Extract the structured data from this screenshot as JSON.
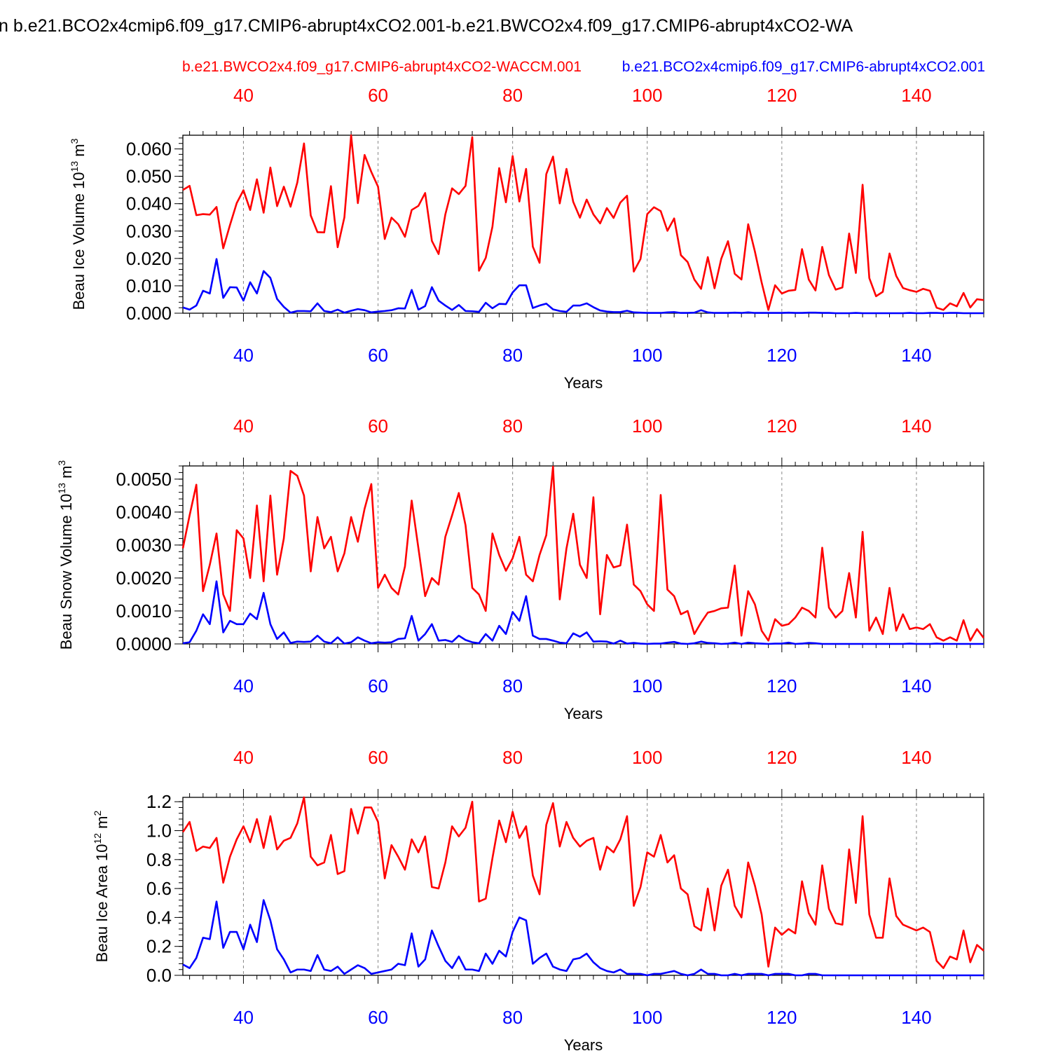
{
  "title": "n b.e21.BCO2x4cmip6.f09_g17.CMIP6-abrupt4xCO2.001-b.e21.BWCO2x4.f09_g17.CMIP6-abrupt4xCO2-WA",
  "legend": {
    "red_label": "b.e21.BWCO2x4.f09_g17.CMIP6-abrupt4xCO2-WACCM.001",
    "blue_label": "b.e21.BCO2x4cmip6.f09_g17.CMIP6-abrupt4xCO2.001"
  },
  "colors": {
    "red": "#ff0000",
    "blue": "#0000ff",
    "axis": "#000000",
    "grid": "#888888"
  },
  "chart_data": [
    {
      "type": "line",
      "xlabel": "Years",
      "ylabel": "Beau Ice Volume 10",
      "ylabel_sup": "13",
      "ylabel_unit": " m",
      "ylabel_unit_sup": "3",
      "xlim": [
        31,
        150
      ],
      "ylim": [
        0,
        0.065
      ],
      "yticks": [
        0,
        0.01,
        0.02,
        0.03,
        0.04,
        0.05,
        0.06
      ],
      "ytick_labels": [
        "0.000",
        "0.010",
        "0.020",
        "0.030",
        "0.040",
        "0.050",
        "0.060"
      ],
      "yminor": 0.002,
      "xticks": [
        40,
        60,
        80,
        100,
        120,
        140
      ],
      "xtick_labels": [
        "40",
        "60",
        "80",
        "100",
        "120",
        "140"
      ],
      "grid": "vertical dashed at major x ticks",
      "series": [
        {
          "color": "red",
          "x_start": 31,
          "values": [
            0.045,
            0.0465,
            0.0358,
            0.0362,
            0.036,
            0.0388,
            0.0237,
            0.0322,
            0.0402,
            0.0449,
            0.0377,
            0.0489,
            0.0367,
            0.0532,
            0.0391,
            0.0462,
            0.0389,
            0.0477,
            0.062,
            0.0357,
            0.0296,
            0.0295,
            0.0464,
            0.0241,
            0.035,
            0.065,
            0.0402,
            0.0578,
            0.0516,
            0.0462,
            0.0271,
            0.0349,
            0.0325,
            0.0279,
            0.0377,
            0.0392,
            0.0439,
            0.0264,
            0.0216,
            0.0361,
            0.0456,
            0.0435,
            0.0465,
            0.0643,
            0.0155,
            0.0202,
            0.0316,
            0.053,
            0.0405,
            0.0574,
            0.0408,
            0.0527,
            0.0243,
            0.0184,
            0.0508,
            0.0572,
            0.0401,
            0.0527,
            0.0407,
            0.0349,
            0.0415,
            0.0361,
            0.0328,
            0.0384,
            0.0348,
            0.0404,
            0.0429,
            0.0152,
            0.0198,
            0.0362,
            0.0387,
            0.0373,
            0.0301,
            0.0346,
            0.0212,
            0.0187,
            0.0123,
            0.0089,
            0.0205,
            0.0091,
            0.0199,
            0.0263,
            0.0144,
            0.0123,
            0.0325,
            0.0225,
            0.0112,
            0.0012,
            0.0102,
            0.0072,
            0.0082,
            0.0085,
            0.0234,
            0.0123,
            0.0083,
            0.0242,
            0.0139,
            0.0086,
            0.0094,
            0.0291,
            0.0147,
            0.0469,
            0.0128,
            0.0062,
            0.0078,
            0.0218,
            0.0136,
            0.0092,
            0.0084,
            0.0078,
            0.0089,
            0.0082,
            0.002,
            0.0012,
            0.0036,
            0.0025,
            0.0074,
            0.0021,
            0.0051,
            0.0048
          ]
        },
        {
          "color": "blue",
          "x_start": 31,
          "values": [
            0.0021,
            0.0013,
            0.0028,
            0.0082,
            0.0072,
            0.0198,
            0.0056,
            0.0095,
            0.0094,
            0.0046,
            0.0113,
            0.0072,
            0.0154,
            0.0129,
            0.0052,
            0.0023,
            0.0002,
            0.0008,
            0.0008,
            0.0007,
            0.0036,
            0.0008,
            0.0004,
            0.0013,
            0.0002,
            0.0009,
            0.0015,
            0.0011,
            0.0003,
            0.0006,
            0.0008,
            0.0011,
            0.0018,
            0.0017,
            0.0085,
            0.0013,
            0.0026,
            0.0095,
            0.0046,
            0.0028,
            0.0012,
            0.003,
            0.0008,
            0.0007,
            0.0005,
            0.0038,
            0.0018,
            0.0034,
            0.0033,
            0.0076,
            0.0102,
            0.0102,
            0.0019,
            0.0028,
            0.0035,
            0.0014,
            0.0008,
            0.0005,
            0.0028,
            0.0028,
            0.0036,
            0.0022,
            0.001,
            0.0006,
            0.0004,
            0.0004,
            0.0009,
            0.0003,
            0.0002,
            0.0001,
            0.0001,
            0.0001,
            0.0003,
            0.0004,
            0.0001,
            0.0001,
            0.0002,
            0.0011,
            0.0003,
            0.0001,
            0.0001,
            0.0001,
            0.0002,
            0.0001,
            0.0003,
            0.0001,
            0.0001,
            0.0001,
            0.0001,
            0.0001,
            0.0002,
            0.0001,
            0.0001,
            0.0002,
            0.0002,
            0.0001,
            0.0001,
            0.0,
            0.0,
            0.0,
            0.0001,
            0.0,
            0.0,
            0.0,
            0.0,
            0.0,
            0.0,
            0.0,
            0.0001,
            0.0,
            0.0,
            0.0001,
            0.0001,
            0.0,
            0.0001,
            0.0001,
            0.0,
            0.0,
            0.0,
            0.0
          ]
        }
      ]
    },
    {
      "type": "line",
      "xlabel": "Years",
      "ylabel": "Beau Snow Volume 10",
      "ylabel_sup": "13",
      "ylabel_unit": " m",
      "ylabel_unit_sup": "3",
      "xlim": [
        31,
        150
      ],
      "ylim": [
        0,
        0.0054
      ],
      "yticks": [
        0,
        0.001,
        0.002,
        0.003,
        0.004,
        0.005
      ],
      "ytick_labels": [
        "0.0000",
        "0.0010",
        "0.0020",
        "0.0030",
        "0.0040",
        "0.0050"
      ],
      "yminor": 0.0002,
      "xticks": [
        40,
        60,
        80,
        100,
        120,
        140
      ],
      "xtick_labels": [
        "40",
        "60",
        "80",
        "100",
        "120",
        "140"
      ],
      "grid": "vertical dashed at major x ticks",
      "series": [
        {
          "color": "red",
          "x_start": 31,
          "values": [
            0.0029,
            0.0039,
            0.00483,
            0.0016,
            0.0024,
            0.00335,
            0.0015,
            0.001,
            0.00345,
            0.0032,
            0.002,
            0.0042,
            0.0019,
            0.0045,
            0.0021,
            0.0032,
            0.00525,
            0.0051,
            0.0045,
            0.0022,
            0.00385,
            0.0029,
            0.00325,
            0.0022,
            0.00275,
            0.00385,
            0.0031,
            0.0041,
            0.00485,
            0.0017,
            0.0021,
            0.0017,
            0.0015,
            0.00235,
            0.00435,
            0.0029,
            0.00145,
            0.002,
            0.0018,
            0.00325,
            0.0039,
            0.00458,
            0.0036,
            0.0017,
            0.0015,
            0.001,
            0.00335,
            0.0027,
            0.00222,
            0.0026,
            0.00325,
            0.0021,
            0.0019,
            0.0027,
            0.0033,
            0.00538,
            0.00135,
            0.0029,
            0.00395,
            0.0024,
            0.002,
            0.00445,
            0.0009,
            0.0027,
            0.00232,
            0.00238,
            0.00362,
            0.0018,
            0.0016,
            0.0012,
            0.001,
            0.00452,
            0.00165,
            0.00145,
            0.0009,
            0.001,
            0.0003,
            0.00065,
            0.00095,
            0.001,
            0.00108,
            0.0011,
            0.00238,
            0.00025,
            0.0016,
            0.0012,
            0.0004,
            0.0001,
            0.00075,
            0.00055,
            0.0006,
            0.0008,
            0.0011,
            0.001,
            0.0008,
            0.00292,
            0.0011,
            0.0008,
            0.001,
            0.00215,
            0.0008,
            0.0034,
            0.0004,
            0.0008,
            0.0003,
            0.0017,
            0.0004,
            0.0009,
            0.00045,
            0.0005,
            0.00045,
            0.0006,
            0.0002,
            0.0001,
            0.0002,
            0.0001,
            0.00072,
            0.0001,
            0.00045,
            0.00018
          ]
        },
        {
          "color": "blue",
          "x_start": 31,
          "values": [
            2e-05,
            5e-05,
            0.0004,
            0.0009,
            0.0006,
            0.0019,
            0.00035,
            0.0007,
            0.0006,
            0.0006,
            0.00092,
            0.00075,
            0.00155,
            0.0006,
            0.00015,
            0.00035,
            3e-05,
            7e-05,
            6e-05,
            7e-05,
            0.00025,
            7e-05,
            2e-05,
            0.0002,
            1e-05,
            5e-05,
            0.0002,
            0.0001,
            2e-05,
            5e-05,
            4e-05,
            5e-05,
            0.00015,
            0.00017,
            0.00085,
            0.0001,
            0.0003,
            0.0006,
            0.0001,
            0.00012,
            6e-05,
            0.00025,
            0.00012,
            5e-05,
            2e-05,
            0.0003,
            0.0001,
            0.00055,
            0.0003,
            0.00097,
            0.0007,
            0.00145,
            0.00025,
            0.00015,
            0.00015,
            0.0001,
            4e-05,
            2e-05,
            0.00032,
            0.00022,
            0.00035,
            7e-05,
            8e-05,
            7e-05,
            1e-05,
            0.0001,
            1e-05,
            3e-05,
            1e-05,
            0.0,
            1e-05,
            1e-05,
            4e-05,
            6e-05,
            1e-05,
            0.0,
            2e-05,
            7e-05,
            3e-05,
            2e-05,
            0.0,
            1e-05,
            4e-05,
            0.0,
            4e-05,
            2e-05,
            1e-05,
            0.0,
            1e-05,
            1e-05,
            4e-05,
            0.0,
            1e-05,
            3e-05,
            2e-05,
            0.0,
            0.0,
            0.0,
            0.0,
            0.0,
            0.0,
            0.0,
            0.0,
            0.0,
            0.0,
            0.0,
            0.0,
            0.0,
            1e-05,
            0.0,
            0.0,
            0.0,
            1e-05,
            0.0,
            0.0,
            0.0,
            0.0,
            0.0,
            0.0,
            0.0
          ]
        }
      ]
    },
    {
      "type": "line",
      "xlabel": "Years",
      "ylabel": "Beau Ice Area 10",
      "ylabel_sup": "12",
      "ylabel_unit": " m",
      "ylabel_unit_sup": "2",
      "xlim": [
        31,
        150
      ],
      "ylim": [
        0,
        1.23
      ],
      "yticks": [
        0,
        0.2,
        0.4,
        0.6,
        0.8,
        1.0,
        1.2
      ],
      "ytick_labels": [
        "0.0",
        "0.2",
        "0.4",
        "0.6",
        "0.8",
        "1.0",
        "1.2"
      ],
      "yminor": 0.04,
      "xticks": [
        40,
        60,
        80,
        100,
        120,
        140
      ],
      "xtick_labels": [
        "40",
        "60",
        "80",
        "100",
        "120",
        "140"
      ],
      "grid": "vertical dashed at major x ticks",
      "series": [
        {
          "color": "red",
          "x_start": 31,
          "values": [
            0.99,
            1.06,
            0.86,
            0.89,
            0.88,
            0.95,
            0.64,
            0.82,
            0.94,
            1.03,
            0.92,
            1.08,
            0.88,
            1.1,
            0.87,
            0.93,
            0.95,
            1.05,
            1.23,
            0.82,
            0.76,
            0.78,
            0.97,
            0.7,
            0.72,
            1.15,
            0.98,
            1.16,
            1.16,
            1.06,
            0.67,
            0.9,
            0.82,
            0.73,
            0.94,
            0.85,
            0.96,
            0.61,
            0.6,
            0.78,
            1.03,
            0.96,
            1.02,
            1.2,
            0.51,
            0.53,
            0.81,
            1.07,
            0.92,
            1.13,
            0.95,
            1.03,
            0.69,
            0.56,
            1.04,
            1.19,
            0.89,
            1.06,
            0.95,
            0.89,
            0.93,
            0.95,
            0.73,
            0.89,
            0.85,
            0.94,
            1.1,
            0.48,
            0.61,
            0.85,
            0.82,
            0.97,
            0.78,
            0.83,
            0.6,
            0.56,
            0.34,
            0.31,
            0.6,
            0.31,
            0.62,
            0.73,
            0.48,
            0.4,
            0.78,
            0.62,
            0.42,
            0.06,
            0.33,
            0.28,
            0.32,
            0.29,
            0.65,
            0.43,
            0.35,
            0.76,
            0.46,
            0.36,
            0.35,
            0.87,
            0.5,
            1.1,
            0.42,
            0.26,
            0.26,
            0.67,
            0.41,
            0.35,
            0.33,
            0.31,
            0.33,
            0.3,
            0.1,
            0.05,
            0.13,
            0.11,
            0.31,
            0.09,
            0.21,
            0.17
          ]
        },
        {
          "color": "blue",
          "x_start": 31,
          "values": [
            0.075,
            0.05,
            0.12,
            0.26,
            0.25,
            0.51,
            0.19,
            0.3,
            0.3,
            0.18,
            0.35,
            0.23,
            0.52,
            0.38,
            0.18,
            0.11,
            0.02,
            0.04,
            0.04,
            0.03,
            0.14,
            0.04,
            0.03,
            0.06,
            0.01,
            0.04,
            0.07,
            0.05,
            0.01,
            0.02,
            0.03,
            0.04,
            0.08,
            0.07,
            0.29,
            0.06,
            0.11,
            0.31,
            0.2,
            0.1,
            0.05,
            0.13,
            0.04,
            0.04,
            0.03,
            0.15,
            0.08,
            0.17,
            0.13,
            0.3,
            0.4,
            0.38,
            0.08,
            0.12,
            0.15,
            0.06,
            0.04,
            0.03,
            0.11,
            0.12,
            0.15,
            0.09,
            0.05,
            0.03,
            0.02,
            0.04,
            0.01,
            0.01,
            0.01,
            0.0,
            0.01,
            0.01,
            0.02,
            0.03,
            0.01,
            0.0,
            0.01,
            0.04,
            0.01,
            0.01,
            0.0,
            0.0,
            0.01,
            0.0,
            0.01,
            0.01,
            0.01,
            0.0,
            0.01,
            0.01,
            0.01,
            0.0,
            0.0,
            0.01,
            0.01,
            0.0,
            0.0,
            0.0,
            0.0,
            0.0,
            0.0,
            0.0,
            0.0,
            0.0,
            0.0,
            0.0,
            0.0,
            0.0,
            0.0,
            0.0,
            0.0,
            0.0,
            0.0,
            0.0,
            0.0,
            0.0,
            0.0,
            0.0,
            0.0,
            0.0
          ]
        }
      ]
    }
  ]
}
